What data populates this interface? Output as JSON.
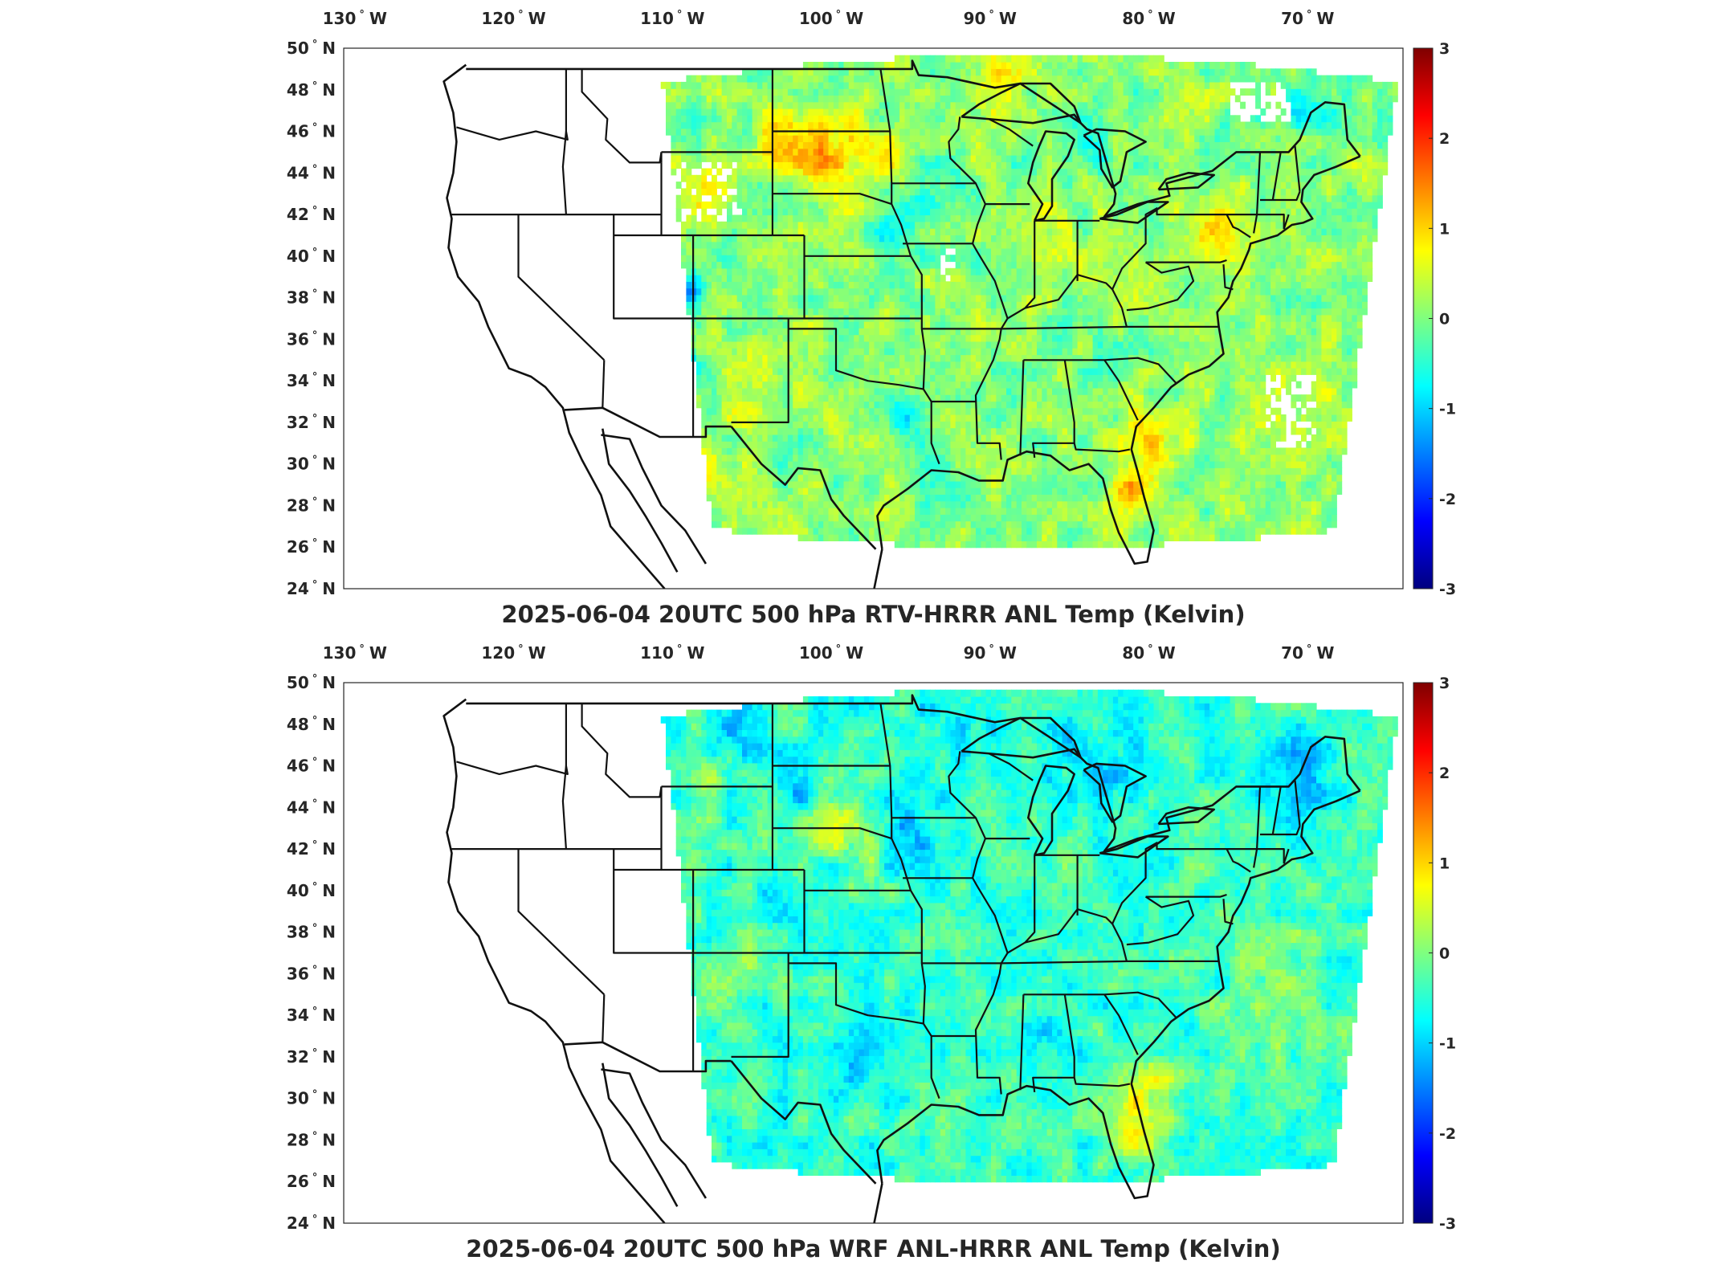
{
  "panels": [
    {
      "title": "2025-06-04 20UTC 500 hPa RTV-HRRR ANL Temp (Kelvin)",
      "variant": "rtv"
    },
    {
      "title": "2025-06-04 20UTC 500 hPa WRF ANL-HRRR ANL Temp (Kelvin)",
      "variant": "wrf"
    }
  ],
  "lon_ticks": [
    "130",
    "120",
    "110",
    "100",
    "90",
    "80",
    "70"
  ],
  "lon_suffix": "W",
  "lat_ticks": [
    "50",
    "48",
    "46",
    "44",
    "42",
    "40",
    "38",
    "36",
    "34",
    "32",
    "30",
    "28",
    "26",
    "24"
  ],
  "lat_suffix": "N",
  "degree_symbol": "°",
  "colorbar": {
    "ticks": [
      "3",
      "2",
      "1",
      "0",
      "-1",
      "-2",
      "-3"
    ],
    "range": [
      -3,
      3
    ],
    "colors": [
      "#00007f",
      "#0000ff",
      "#007fff",
      "#00ffff",
      "#7fff7f",
      "#ffff00",
      "#ff7f00",
      "#ff0000",
      "#7f0000"
    ]
  }
}
